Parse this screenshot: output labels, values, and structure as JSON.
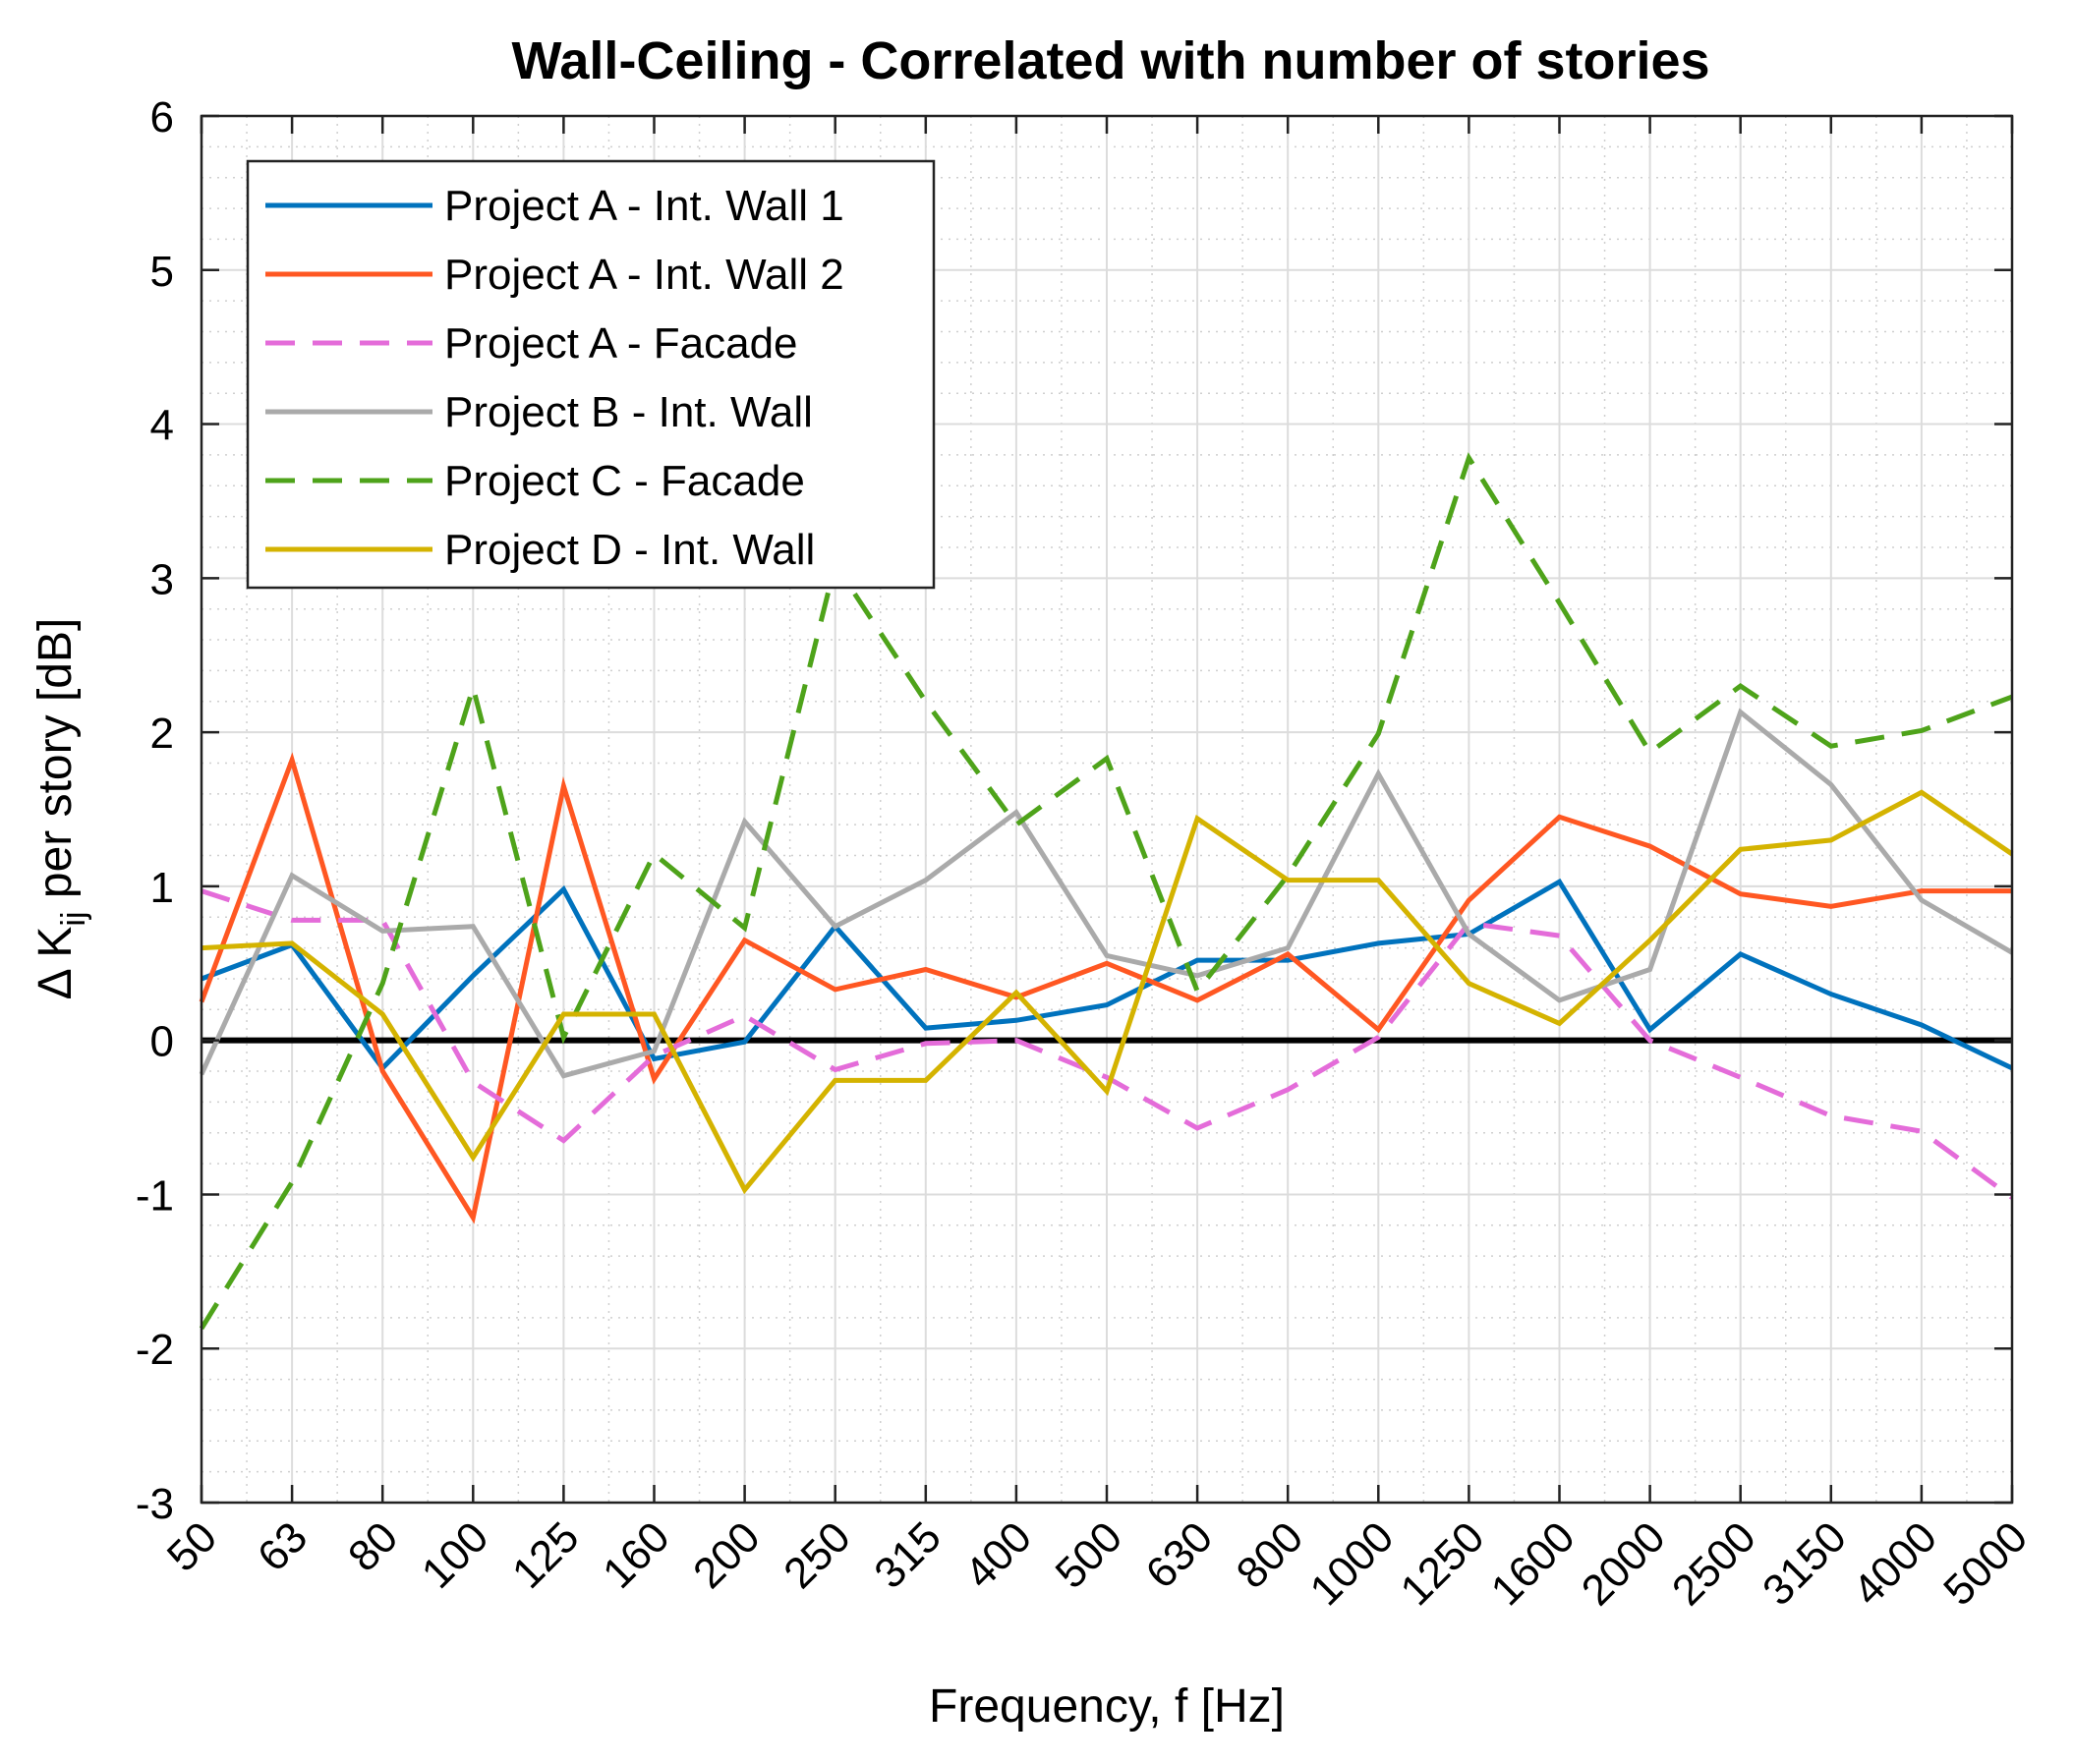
{
  "chart_data": {
    "type": "line",
    "title": "Wall-Ceiling - Correlated with number of stories",
    "xlabel": "Frequency, f [Hz]",
    "ylabel": {
      "prefix": "Δ K",
      "subscript": "ij",
      "suffix": " per story [dB]"
    },
    "categories": [
      "50",
      "63",
      "80",
      "100",
      "125",
      "160",
      "200",
      "250",
      "315",
      "400",
      "500",
      "630",
      "800",
      "1000",
      "1250",
      "1600",
      "2000",
      "2500",
      "3150",
      "4000",
      "5000"
    ],
    "ylim": [
      -3,
      6
    ],
    "yticks": [
      "-3",
      "-2",
      "-1",
      "0",
      "1",
      "2",
      "3",
      "4",
      "5",
      "6"
    ],
    "grid": true,
    "minor_grid": true,
    "legend_position": "top-left",
    "reference_line": 0,
    "series": [
      {
        "name": "Project A - Int. Wall 1",
        "color": "#0072BD",
        "dash": "solid",
        "values": [
          0.4,
          0.62,
          -0.18,
          0.42,
          0.98,
          -0.12,
          -0.01,
          0.74,
          0.08,
          0.13,
          0.23,
          0.52,
          0.52,
          0.63,
          0.69,
          1.03,
          0.07,
          0.56,
          0.3,
          0.1,
          -0.18
        ]
      },
      {
        "name": "Project A - Int. Wall 2",
        "color": "#FF5722",
        "dash": "solid",
        "values": [
          0.25,
          1.82,
          -0.2,
          -1.15,
          1.65,
          -0.25,
          0.65,
          0.33,
          0.46,
          0.28,
          0.5,
          0.26,
          0.56,
          0.07,
          0.91,
          1.45,
          1.26,
          0.95,
          0.87,
          0.97,
          0.97
        ]
      },
      {
        "name": "Project A - Facade",
        "color": "#E46CD9",
        "dash": "dashed",
        "values": [
          0.97,
          0.78,
          0.78,
          -0.27,
          -0.65,
          -0.1,
          0.16,
          -0.19,
          -0.02,
          0.0,
          -0.24,
          -0.57,
          -0.32,
          0.02,
          0.76,
          0.68,
          0.0,
          -0.24,
          -0.49,
          -0.59,
          -1.02
        ]
      },
      {
        "name": "Project B - Int. Wall",
        "color": "#AAAAAA",
        "dash": "solid",
        "values": [
          -0.22,
          1.07,
          0.71,
          0.74,
          -0.23,
          -0.07,
          1.42,
          0.74,
          1.04,
          1.48,
          0.55,
          0.42,
          0.6,
          1.73,
          0.69,
          0.26,
          0.46,
          2.13,
          1.66,
          0.91,
          0.57
        ]
      },
      {
        "name": "Project C - Facade",
        "color": "#4EA31A",
        "dash": "dashed",
        "values": [
          -1.87,
          -0.92,
          0.37,
          2.29,
          0.02,
          1.21,
          0.73,
          3.09,
          2.2,
          1.4,
          1.83,
          0.32,
          1.07,
          1.99,
          3.78,
          2.84,
          1.87,
          2.3,
          1.91,
          2.01,
          2.23
        ]
      },
      {
        "name": "Project D - Int. Wall",
        "color": "#D4B300",
        "dash": "solid",
        "values": [
          0.6,
          0.63,
          0.17,
          -0.76,
          0.17,
          0.17,
          -0.97,
          -0.26,
          -0.26,
          0.31,
          -0.33,
          1.44,
          1.04,
          1.04,
          0.37,
          0.11,
          0.65,
          1.24,
          1.3,
          1.61,
          1.21
        ]
      }
    ]
  }
}
